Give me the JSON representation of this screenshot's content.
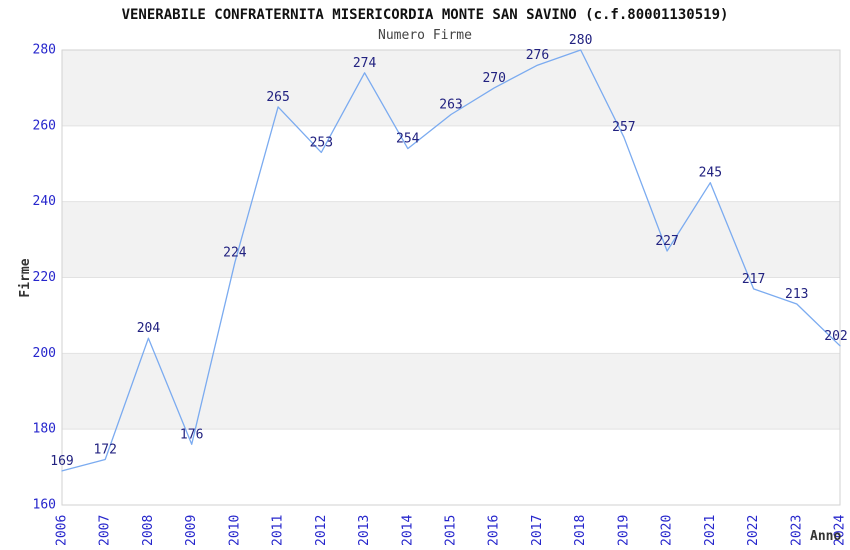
{
  "chart_data": {
    "type": "line",
    "title": "VENERABILE CONFRATERNITA MISERICORDIA MONTE SAN SAVINO (c.f.80001130519)",
    "subtitle": "Numero Firme",
    "xlabel": "Anno",
    "ylabel": "Firme",
    "categories": [
      "2006",
      "2007",
      "2008",
      "2009",
      "2010",
      "2011",
      "2012",
      "2013",
      "2014",
      "2015",
      "2016",
      "2017",
      "2018",
      "2019",
      "2020",
      "2021",
      "2022",
      "2023",
      "2024"
    ],
    "values": [
      169,
      172,
      204,
      176,
      224,
      265,
      253,
      274,
      254,
      263,
      270,
      276,
      280,
      257,
      227,
      245,
      217,
      213,
      202
    ],
    "ylim": [
      160,
      280
    ],
    "ytick_step": 20,
    "yticks": [
      160,
      180,
      200,
      220,
      240,
      260,
      280
    ],
    "grid": true,
    "banded_background": true,
    "legend": "none",
    "point_labels_visible": true,
    "colors": {
      "line": "#7babf0",
      "tick_label": "#2626cc",
      "point_label": "#222280",
      "band": "#f2f2f2",
      "gridline": "#e2e2e2",
      "plot_border": "#d2d2d2",
      "title": "#111111",
      "subtitle": "#444444",
      "axis_label": "#333333",
      "plot_background": "#ffffff"
    }
  }
}
